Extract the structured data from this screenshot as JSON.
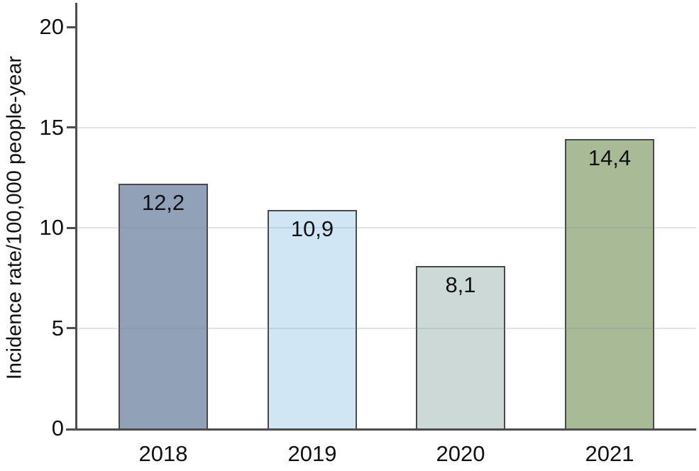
{
  "chart_data": {
    "type": "bar",
    "title": "",
    "xlabel": "",
    "ylabel": "Incidence rate/100,000 people-year",
    "categories": [
      "2018",
      "2019",
      "2020",
      "2021"
    ],
    "values": [
      12.2,
      10.9,
      8.1,
      14.4
    ],
    "value_labels": [
      "12,2",
      "10,9",
      "8,1",
      "14,4"
    ],
    "ylim": [
      0,
      20
    ],
    "yticks": [
      0,
      5,
      10,
      15,
      20
    ],
    "ytick_labels": [
      "0",
      "5",
      "10",
      "15",
      "20"
    ],
    "gridlines_at": [
      5,
      10,
      15
    ],
    "legend_position": "none",
    "grid": "horizontal",
    "bar_colors": [
      "#90a1b8",
      "#d1e6f5",
      "#ccd9d7",
      "#a9ba96"
    ],
    "bar_border_color": "#4a4a4a",
    "axis_color": "#4d4d4d",
    "gridline_color_rgba": "rgba(110,140,160,0.22)",
    "text_color": "#111111"
  }
}
